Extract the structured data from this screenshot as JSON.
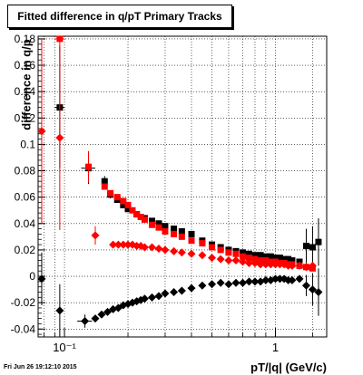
{
  "chart_data": {
    "type": "scatter",
    "title": "Fitted difference in q/pT  Primary Tracks",
    "xlabel": "pT/|q| (GeV/c)",
    "ylabel": "difference in q/p",
    "x_scale": "log",
    "xlim": [
      0.075,
      1.75
    ],
    "ylim": [
      -0.046,
      0.182
    ],
    "grid": true,
    "x_ticks": [
      {
        "v": 0.1,
        "label": "10⁻¹"
      },
      {
        "v": 1,
        "label": "1"
      }
    ],
    "y_ticks": [
      -0.04,
      -0.02,
      0,
      0.02,
      0.04,
      0.06,
      0.08,
      0.1,
      0.12,
      0.14,
      0.16,
      0.18
    ],
    "series": [
      {
        "marker": "square",
        "color": "#000000",
        "points": [
          {
            "x": 0.095,
            "y": 0.128,
            "ey": 0.046,
            "ex": 0.005
          },
          {
            "x": 0.13,
            "y": 0.082,
            "ey": 0.012,
            "ex": 0.01
          },
          {
            "x": 0.155,
            "y": 0.072,
            "ey": 0.004
          },
          {
            "x": 0.165,
            "y": 0.062,
            "ey": 0.003
          },
          {
            "x": 0.178,
            "y": 0.058
          },
          {
            "x": 0.19,
            "y": 0.054
          },
          {
            "x": 0.2,
            "y": 0.051
          },
          {
            "x": 0.22,
            "y": 0.047
          },
          {
            "x": 0.24,
            "y": 0.044
          },
          {
            "x": 0.26,
            "y": 0.042
          },
          {
            "x": 0.28,
            "y": 0.04
          },
          {
            "x": 0.3,
            "y": 0.038
          },
          {
            "x": 0.33,
            "y": 0.036
          },
          {
            "x": 0.36,
            "y": 0.034
          },
          {
            "x": 0.4,
            "y": 0.032
          },
          {
            "x": 0.45,
            "y": 0.027
          },
          {
            "x": 0.5,
            "y": 0.024
          },
          {
            "x": 0.55,
            "y": 0.022
          },
          {
            "x": 0.6,
            "y": 0.02
          },
          {
            "x": 0.65,
            "y": 0.019
          },
          {
            "x": 0.7,
            "y": 0.018
          },
          {
            "x": 0.75,
            "y": 0.017
          },
          {
            "x": 0.8,
            "y": 0.016
          },
          {
            "x": 0.85,
            "y": 0.016
          },
          {
            "x": 0.9,
            "y": 0.015
          },
          {
            "x": 0.95,
            "y": 0.015
          },
          {
            "x": 1.0,
            "y": 0.014
          },
          {
            "x": 1.05,
            "y": 0.014
          },
          {
            "x": 1.1,
            "y": 0.013
          },
          {
            "x": 1.15,
            "y": 0.013
          },
          {
            "x": 1.2,
            "y": 0.012
          },
          {
            "x": 1.3,
            "y": 0.011
          },
          {
            "x": 1.4,
            "y": 0.023,
            "ey": 0.013
          },
          {
            "x": 1.5,
            "y": 0.022,
            "ey": 0.016
          },
          {
            "x": 1.6,
            "y": 0.026,
            "ey": 0.018
          }
        ]
      },
      {
        "marker": "square",
        "color": "#ff0000",
        "points": [
          {
            "x": 0.095,
            "y": 0.18,
            "ey": 0.01,
            "ex": 0.005
          },
          {
            "x": 0.13,
            "y": 0.083,
            "ey": 0.012
          },
          {
            "x": 0.155,
            "y": 0.068
          },
          {
            "x": 0.165,
            "y": 0.063
          },
          {
            "x": 0.178,
            "y": 0.06
          },
          {
            "x": 0.19,
            "y": 0.057
          },
          {
            "x": 0.2,
            "y": 0.054
          },
          {
            "x": 0.21,
            "y": 0.05
          },
          {
            "x": 0.22,
            "y": 0.047
          },
          {
            "x": 0.23,
            "y": 0.045
          },
          {
            "x": 0.24,
            "y": 0.043
          },
          {
            "x": 0.26,
            "y": 0.039
          },
          {
            "x": 0.28,
            "y": 0.037
          },
          {
            "x": 0.3,
            "y": 0.034
          },
          {
            "x": 0.33,
            "y": 0.032
          },
          {
            "x": 0.36,
            "y": 0.03
          },
          {
            "x": 0.4,
            "y": 0.027
          },
          {
            "x": 0.45,
            "y": 0.025
          },
          {
            "x": 0.5,
            "y": 0.022
          },
          {
            "x": 0.55,
            "y": 0.02
          },
          {
            "x": 0.6,
            "y": 0.018
          },
          {
            "x": 0.65,
            "y": 0.017
          },
          {
            "x": 0.7,
            "y": 0.015
          },
          {
            "x": 0.75,
            "y": 0.014
          },
          {
            "x": 0.8,
            "y": 0.013
          },
          {
            "x": 0.85,
            "y": 0.012
          },
          {
            "x": 0.9,
            "y": 0.012
          },
          {
            "x": 0.95,
            "y": 0.011
          },
          {
            "x": 1.0,
            "y": 0.011
          },
          {
            "x": 1.05,
            "y": 0.01
          },
          {
            "x": 1.1,
            "y": 0.01
          },
          {
            "x": 1.15,
            "y": 0.009
          },
          {
            "x": 1.2,
            "y": 0.009
          },
          {
            "x": 1.3,
            "y": 0.008
          },
          {
            "x": 1.4,
            "y": 0.007
          },
          {
            "x": 1.5,
            "y": 0.006
          }
        ]
      },
      {
        "marker": "diamond",
        "color": "#ff0000",
        "points": [
          {
            "x": 0.078,
            "y": 0.11,
            "ey": 0.07
          },
          {
            "x": 0.095,
            "y": 0.105,
            "ey": 0.07
          },
          {
            "x": 0.14,
            "y": 0.031,
            "ey": 0.007
          },
          {
            "x": 0.17,
            "y": 0.024
          },
          {
            "x": 0.18,
            "y": 0.024
          },
          {
            "x": 0.19,
            "y": 0.024
          },
          {
            "x": 0.2,
            "y": 0.024
          },
          {
            "x": 0.21,
            "y": 0.024
          },
          {
            "x": 0.22,
            "y": 0.023
          },
          {
            "x": 0.23,
            "y": 0.023
          },
          {
            "x": 0.24,
            "y": 0.022
          },
          {
            "x": 0.26,
            "y": 0.022
          },
          {
            "x": 0.28,
            "y": 0.021
          },
          {
            "x": 0.3,
            "y": 0.02
          },
          {
            "x": 0.33,
            "y": 0.019
          },
          {
            "x": 0.36,
            "y": 0.018
          },
          {
            "x": 0.4,
            "y": 0.017
          },
          {
            "x": 0.45,
            "y": 0.016
          },
          {
            "x": 0.5,
            "y": 0.014
          },
          {
            "x": 0.55,
            "y": 0.013
          },
          {
            "x": 0.6,
            "y": 0.012
          },
          {
            "x": 0.65,
            "y": 0.012
          },
          {
            "x": 0.7,
            "y": 0.011
          },
          {
            "x": 0.75,
            "y": 0.01
          },
          {
            "x": 0.8,
            "y": 0.01
          },
          {
            "x": 0.85,
            "y": 0.009
          },
          {
            "x": 0.9,
            "y": 0.009
          },
          {
            "x": 0.95,
            "y": 0.009
          },
          {
            "x": 1.0,
            "y": 0.009
          },
          {
            "x": 1.05,
            "y": 0.009
          },
          {
            "x": 1.1,
            "y": 0.009
          },
          {
            "x": 1.15,
            "y": 0.008
          },
          {
            "x": 1.2,
            "y": 0.008
          },
          {
            "x": 1.3,
            "y": 0.008
          },
          {
            "x": 1.4,
            "y": 0.007
          },
          {
            "x": 1.5,
            "y": 0.008
          }
        ]
      },
      {
        "marker": "diamond",
        "color": "#000000",
        "points": [
          {
            "x": 0.078,
            "y": -0.002,
            "ey": 0.02
          },
          {
            "x": 0.095,
            "y": -0.026,
            "ey": 0.02
          },
          {
            "x": 0.125,
            "y": -0.034,
            "ey": 0.005,
            "ex": 0.01
          },
          {
            "x": 0.14,
            "y": -0.032
          },
          {
            "x": 0.15,
            "y": -0.029
          },
          {
            "x": 0.16,
            "y": -0.027
          },
          {
            "x": 0.17,
            "y": -0.025
          },
          {
            "x": 0.18,
            "y": -0.024
          },
          {
            "x": 0.19,
            "y": -0.022
          },
          {
            "x": 0.2,
            "y": -0.021
          },
          {
            "x": 0.21,
            "y": -0.02
          },
          {
            "x": 0.22,
            "y": -0.019
          },
          {
            "x": 0.23,
            "y": -0.018
          },
          {
            "x": 0.24,
            "y": -0.017
          },
          {
            "x": 0.26,
            "y": -0.016
          },
          {
            "x": 0.28,
            "y": -0.015
          },
          {
            "x": 0.3,
            "y": -0.013
          },
          {
            "x": 0.33,
            "y": -0.012
          },
          {
            "x": 0.36,
            "y": -0.011
          },
          {
            "x": 0.4,
            "y": -0.009
          },
          {
            "x": 0.45,
            "y": -0.007
          },
          {
            "x": 0.5,
            "y": -0.006
          },
          {
            "x": 0.55,
            "y": -0.005
          },
          {
            "x": 0.6,
            "y": -0.006
          },
          {
            "x": 0.65,
            "y": -0.005
          },
          {
            "x": 0.7,
            "y": -0.005
          },
          {
            "x": 0.75,
            "y": -0.004
          },
          {
            "x": 0.8,
            "y": -0.004
          },
          {
            "x": 0.85,
            "y": -0.004
          },
          {
            "x": 0.9,
            "y": -0.003
          },
          {
            "x": 0.95,
            "y": -0.003
          },
          {
            "x": 1.0,
            "y": -0.002
          },
          {
            "x": 1.05,
            "y": -0.002
          },
          {
            "x": 1.1,
            "y": -0.002
          },
          {
            "x": 1.15,
            "y": -0.003
          },
          {
            "x": 1.2,
            "y": -0.003
          },
          {
            "x": 1.3,
            "y": -0.002
          },
          {
            "x": 1.4,
            "y": -0.007,
            "ey": 0.008
          },
          {
            "x": 1.5,
            "y": -0.01,
            "ey": 0.012
          },
          {
            "x": 1.6,
            "y": -0.012,
            "ey": 0.018
          }
        ]
      }
    ]
  },
  "footer": {
    "timestamp": "Fri Jun 26 19:12:10 2015"
  }
}
